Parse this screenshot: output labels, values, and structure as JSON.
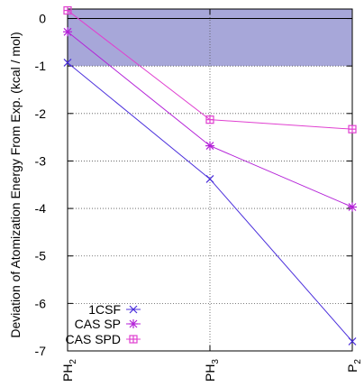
{
  "chart_data": {
    "type": "line",
    "ylabel": "Deviation of Atomization Energy From Exp. (kcal / mol)",
    "xlabel": "",
    "categories": [
      {
        "base": "PH",
        "sub": "2"
      },
      {
        "base": "PH",
        "sub": "3"
      },
      {
        "base": "P",
        "sub": "2"
      }
    ],
    "ylim": [
      -7,
      0.2
    ],
    "yticks": [
      "0",
      "-1",
      "-2",
      "-3",
      "-4",
      "-5",
      "-6",
      "-7"
    ],
    "shaded_band": {
      "from": -1,
      "to": 0.2,
      "color": "#a7a7d9"
    },
    "zero_line": 0,
    "grid": "dotted",
    "legend_position": "bottom-left",
    "series": [
      {
        "name": "1CSF",
        "values": [
          -0.93,
          -3.38,
          -6.8
        ],
        "color": "#4b2fdc",
        "marker": "x"
      },
      {
        "name": "CAS SP",
        "values": [
          -0.28,
          -2.68,
          -3.97
        ],
        "color": "#b422d8",
        "marker": "star"
      },
      {
        "name": "CAS SPD",
        "values": [
          0.17,
          -2.13,
          -2.33
        ],
        "color": "#e040d0",
        "marker": "boxed-square"
      }
    ]
  }
}
